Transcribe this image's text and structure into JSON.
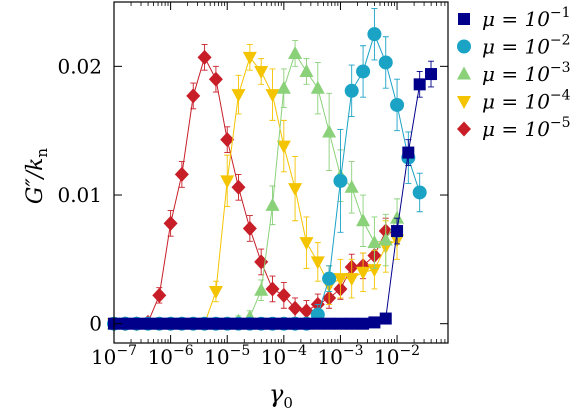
{
  "chart_data": {
    "type": "scatter",
    "xscale": "log",
    "xlim": [
      1e-07,
      0.0794
    ],
    "ylim": [
      -0.0015,
      0.025
    ],
    "xlabel": "γ0",
    "ylabel": "G″/kn",
    "legend_position": "right",
    "x_ticks": [
      {
        "value": 1e-07,
        "base": "10",
        "exp": "−7"
      },
      {
        "value": 1e-06,
        "base": "10",
        "exp": "−6"
      },
      {
        "value": 1e-05,
        "base": "10",
        "exp": "−5"
      },
      {
        "value": 0.0001,
        "base": "10",
        "exp": "−4"
      },
      {
        "value": 0.001,
        "base": "10",
        "exp": "−3"
      },
      {
        "value": 0.01,
        "base": "10",
        "exp": "−2"
      }
    ],
    "y_ticks": [
      {
        "value": 0,
        "label": "0"
      },
      {
        "value": 0.01,
        "label": "0.01"
      },
      {
        "value": 0.02,
        "label": "0.02"
      }
    ],
    "series": [
      {
        "name": "μ = 10−1",
        "mu_base": "μ = 10",
        "mu_exp": "−1",
        "marker": "square",
        "color": "#00008b",
        "points": [
          [
            1e-07,
            0.0,
            0.0003
          ],
          [
            1.58e-07,
            0.0,
            0.0003
          ],
          [
            2.51e-07,
            0.0,
            0.0003
          ],
          [
            3.98e-07,
            0.0,
            0.0003
          ],
          [
            6.31e-07,
            0.0,
            0.0003
          ],
          [
            1e-06,
            0.0,
            0.0003
          ],
          [
            1.58e-06,
            0.0,
            0.0003
          ],
          [
            2.51e-06,
            0.0,
            0.0003
          ],
          [
            3.98e-06,
            0.0,
            0.0003
          ],
          [
            6.31e-06,
            0.0,
            0.0003
          ],
          [
            1e-05,
            0.0,
            0.0003
          ],
          [
            1.58e-05,
            0.0,
            0.0003
          ],
          [
            2.51e-05,
            0.0,
            0.0003
          ],
          [
            3.98e-05,
            0.0,
            0.0003
          ],
          [
            6.31e-05,
            0.0,
            0.0003
          ],
          [
            0.0001,
            0.0,
            0.0003
          ],
          [
            0.000158,
            0.0,
            0.0003
          ],
          [
            0.000251,
            0.0,
            0.0003
          ],
          [
            0.000398,
            0.0,
            0.0003
          ],
          [
            0.000631,
            0.0,
            0.0003
          ],
          [
            0.001,
            0.0,
            0.0003
          ],
          [
            0.00158,
            0.0,
            0.0003
          ],
          [
            0.00251,
            0.0,
            0.0003
          ],
          [
            0.00398,
            0.0001,
            0.0003
          ],
          [
            0.00631,
            0.0004,
            0.0004
          ],
          [
            0.01,
            0.0072,
            0.001
          ],
          [
            0.0158,
            0.0133,
            0.001
          ],
          [
            0.0251,
            0.0186,
            0.001
          ],
          [
            0.0398,
            0.0194,
            0.001
          ]
        ]
      },
      {
        "name": "μ = 10−2",
        "mu_base": "μ = 10",
        "mu_exp": "−2",
        "marker": "circle",
        "color": "#1ba3c6",
        "points": [
          [
            1e-07,
            0.0,
            0.0003
          ],
          [
            1.58e-07,
            0.0,
            0.0003
          ],
          [
            2.51e-07,
            0.0,
            0.0003
          ],
          [
            3.98e-07,
            0.0,
            0.0003
          ],
          [
            6.31e-07,
            0.0,
            0.0003
          ],
          [
            1e-06,
            0.0,
            0.0003
          ],
          [
            1.58e-06,
            0.0,
            0.0003
          ],
          [
            2.51e-06,
            0.0,
            0.0003
          ],
          [
            3.98e-06,
            0.0,
            0.0003
          ],
          [
            6.31e-06,
            0.0,
            0.0003
          ],
          [
            1e-05,
            0.0,
            0.0003
          ],
          [
            1.58e-05,
            0.0,
            0.0003
          ],
          [
            2.51e-05,
            0.0,
            0.0003
          ],
          [
            3.98e-05,
            0.0,
            0.0003
          ],
          [
            6.31e-05,
            0.0,
            0.0003
          ],
          [
            0.0001,
            0.0,
            0.0003
          ],
          [
            0.000158,
            0.0,
            0.0003
          ],
          [
            0.000251,
            0.0,
            0.0003
          ],
          [
            0.000398,
            0.0007,
            0.0008
          ],
          [
            0.000631,
            0.0035,
            0.001
          ],
          [
            0.001,
            0.0111,
            0.004
          ],
          [
            0.00158,
            0.0181,
            0.002
          ],
          [
            0.00251,
            0.0196,
            0.002
          ],
          [
            0.00398,
            0.0225,
            0.002
          ],
          [
            0.00631,
            0.0203,
            0.002
          ],
          [
            0.01,
            0.017,
            0.002
          ],
          [
            0.0158,
            0.0129,
            0.002
          ],
          [
            0.0251,
            0.0102,
            0.0015
          ]
        ]
      },
      {
        "name": "μ = 10−3",
        "mu_base": "μ = 10",
        "mu_exp": "−3",
        "marker": "triangle-up",
        "color": "#8bd17a",
        "points": [
          [
            1e-07,
            0.0,
            0.0003
          ],
          [
            1.58e-07,
            0.0,
            0.0003
          ],
          [
            2.51e-07,
            0.0,
            0.0003
          ],
          [
            3.98e-07,
            0.0,
            0.0003
          ],
          [
            6.31e-07,
            0.0,
            0.0003
          ],
          [
            1e-06,
            0.0,
            0.0003
          ],
          [
            1.58e-06,
            0.0,
            0.0003
          ],
          [
            2.51e-06,
            0.0,
            0.0003
          ],
          [
            3.98e-06,
            0.0,
            0.0003
          ],
          [
            6.31e-06,
            0.0,
            0.0003
          ],
          [
            1e-05,
            0.0,
            0.0003
          ],
          [
            1.58e-05,
            0.0002,
            0.0004
          ],
          [
            2.51e-05,
            0.0005,
            0.0005
          ],
          [
            3.98e-05,
            0.0026,
            0.0008
          ],
          [
            6.31e-05,
            0.0092,
            0.0015
          ],
          [
            0.0001,
            0.0183,
            0.0015
          ],
          [
            0.000158,
            0.021,
            0.001
          ],
          [
            0.000251,
            0.0196,
            0.001
          ],
          [
            0.000398,
            0.0183,
            0.002
          ],
          [
            0.000631,
            0.0149,
            0.003
          ],
          [
            0.001,
            0.0115,
            0.002
          ],
          [
            0.00158,
            0.0106,
            0.002
          ],
          [
            0.00251,
            0.008,
            0.002
          ],
          [
            0.00398,
            0.0063,
            0.002
          ],
          [
            0.00631,
            0.0065,
            0.002
          ],
          [
            0.01,
            0.0082,
            0.0015
          ]
        ]
      },
      {
        "name": "μ = 10−4",
        "mu_base": "μ = 10",
        "mu_exp": "−4",
        "marker": "triangle-down",
        "color": "#f5c400",
        "points": [
          [
            1e-07,
            0.0,
            0.0003
          ],
          [
            1.58e-07,
            0.0,
            0.0003
          ],
          [
            2.51e-07,
            0.0,
            0.0003
          ],
          [
            3.98e-07,
            0.0,
            0.0003
          ],
          [
            6.31e-07,
            0.0,
            0.0003
          ],
          [
            1e-06,
            0.0,
            0.0003
          ],
          [
            1.58e-06,
            0.0,
            0.0003
          ],
          [
            2.51e-06,
            0.0,
            0.0003
          ],
          [
            3.98e-06,
            0.0,
            0.0003
          ],
          [
            6.31e-06,
            0.0025,
            0.0008
          ],
          [
            1e-05,
            0.0111,
            0.002
          ],
          [
            1.58e-05,
            0.0178,
            0.0015
          ],
          [
            2.51e-05,
            0.0207,
            0.001
          ],
          [
            3.98e-05,
            0.0196,
            0.001
          ],
          [
            6.31e-05,
            0.0178,
            0.002
          ],
          [
            0.0001,
            0.0138,
            0.002
          ],
          [
            0.000158,
            0.0105,
            0.0025
          ],
          [
            0.000251,
            0.0063,
            0.002
          ],
          [
            0.000398,
            0.0048,
            0.0015
          ],
          [
            0.000631,
            0.003,
            0.0015
          ],
          [
            0.001,
            0.0035,
            0.0015
          ],
          [
            0.00158,
            0.0035,
            0.0015
          ],
          [
            0.00251,
            0.004,
            0.0015
          ],
          [
            0.00398,
            0.0042,
            0.0015
          ],
          [
            0.00631,
            0.006,
            0.002
          ],
          [
            0.01,
            0.0065,
            0.0015
          ]
        ]
      },
      {
        "name": "μ = 10−5",
        "mu_base": "μ = 10",
        "mu_exp": "−5",
        "marker": "diamond",
        "color": "#c81e28",
        "points": [
          [
            1e-07,
            0.0,
            0.0003
          ],
          [
            1.58e-07,
            0.0,
            0.0003
          ],
          [
            2.51e-07,
            0.0,
            0.0003
          ],
          [
            3.98e-07,
            0.0001,
            0.0003
          ],
          [
            6.31e-07,
            0.0022,
            0.0006
          ],
          [
            1e-06,
            0.0078,
            0.001
          ],
          [
            1.58e-06,
            0.0116,
            0.001
          ],
          [
            2.51e-06,
            0.0177,
            0.001
          ],
          [
            3.98e-06,
            0.0207,
            0.001
          ],
          [
            6.31e-06,
            0.019,
            0.001
          ],
          [
            1e-05,
            0.0143,
            0.001
          ],
          [
            1.58e-05,
            0.0106,
            0.001
          ],
          [
            2.51e-05,
            0.0074,
            0.001
          ],
          [
            3.98e-05,
            0.0048,
            0.001
          ],
          [
            6.31e-05,
            0.0027,
            0.001
          ],
          [
            0.0001,
            0.0022,
            0.001
          ],
          [
            0.000158,
            0.0012,
            0.0008
          ],
          [
            0.000251,
            0.001,
            0.0008
          ],
          [
            0.000398,
            0.0015,
            0.0008
          ],
          [
            0.000631,
            0.002,
            0.0008
          ],
          [
            0.001,
            0.0027,
            0.0008
          ],
          [
            0.00158,
            0.0044,
            0.001
          ],
          [
            0.00251,
            0.0045,
            0.001
          ],
          [
            0.00398,
            0.0053,
            0.001
          ],
          [
            0.00631,
            0.0072,
            0.001
          ]
        ]
      }
    ]
  }
}
